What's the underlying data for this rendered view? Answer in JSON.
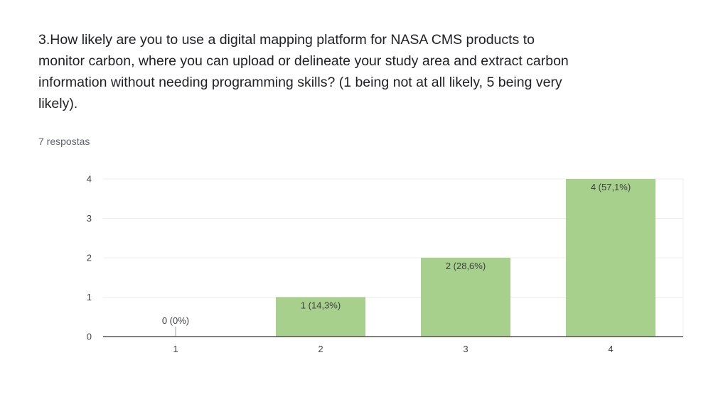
{
  "question": {
    "title": "3.How likely are you to use a digital mapping platform for NASA CMS products to monitor carbon, where you can upload or delineate your study area and extract carbon information without needing programming skills? (1 being not at all likely, 5 being very likely).",
    "response_count": "7 respostas"
  },
  "colors": {
    "bar": "#a8d08d",
    "grid": "#ececec",
    "axis": "#333333"
  },
  "chart_data": {
    "type": "bar",
    "categories": [
      "1",
      "2",
      "3",
      "4"
    ],
    "values": [
      0,
      1,
      2,
      4
    ],
    "data_labels": [
      "0 (0%)",
      "1 (14,3%)",
      "2 (28,6%)",
      "4 (57,1%)"
    ],
    "y_ticks": [
      "0",
      "1",
      "2",
      "3",
      "4"
    ],
    "ylim": [
      0,
      4
    ],
    "grid": true,
    "legend": "none"
  }
}
